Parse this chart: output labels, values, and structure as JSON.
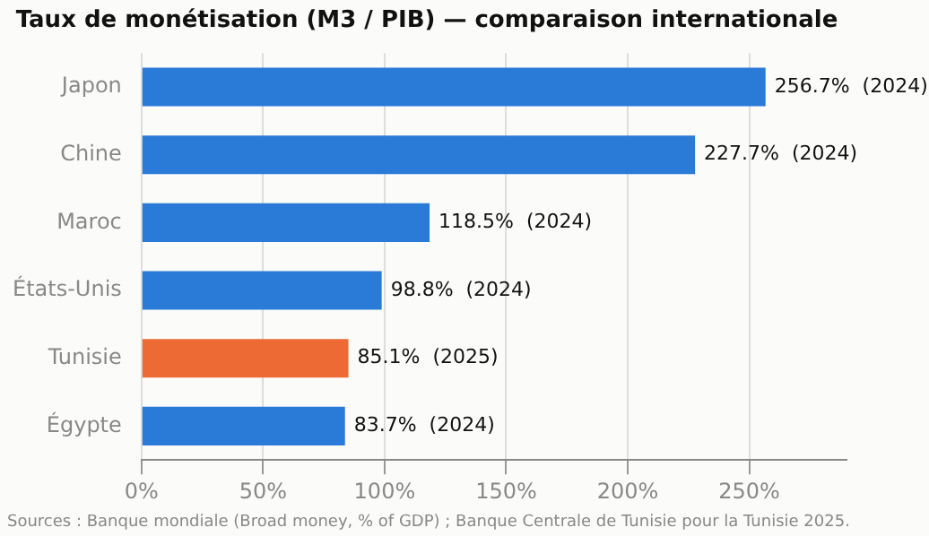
{
  "chart_data": {
    "type": "bar",
    "orientation": "horizontal",
    "title": "Taux de monétisation (M3 / PIB) — comparaison internationale",
    "categories": [
      "Japon",
      "Chine",
      "Maroc",
      "États-Unis",
      "Tunisie",
      "Égypte"
    ],
    "values": [
      256.7,
      227.7,
      118.5,
      98.8,
      85.1,
      83.7
    ],
    "colors": [
      "#2a7ad8",
      "#2a7ad8",
      "#2a7ad8",
      "#2a7ad8",
      "#ee6a35",
      "#2a7ad8"
    ],
    "value_labels": [
      "256.7%  (2024)",
      "227.7%  (2024)",
      "118.5%  (2024)",
      "98.8%  (2024)",
      "85.1%  (2025)",
      "83.7%  (2024)"
    ],
    "xlim": [
      0,
      290
    ],
    "xticks": [
      {
        "value": 0,
        "label": "0%"
      },
      {
        "value": 50,
        "label": "50%"
      },
      {
        "value": 100,
        "label": "100%"
      },
      {
        "value": 150,
        "label": "150%"
      },
      {
        "value": 200,
        "label": "200%"
      },
      {
        "value": 250,
        "label": "250%"
      }
    ],
    "grid": "x",
    "legend": false,
    "annotations": [
      "Sources : Banque mondiale (Broad money, % of GDP) ; Banque Centrale de Tunisie pour la Tunisie 2025."
    ]
  }
}
